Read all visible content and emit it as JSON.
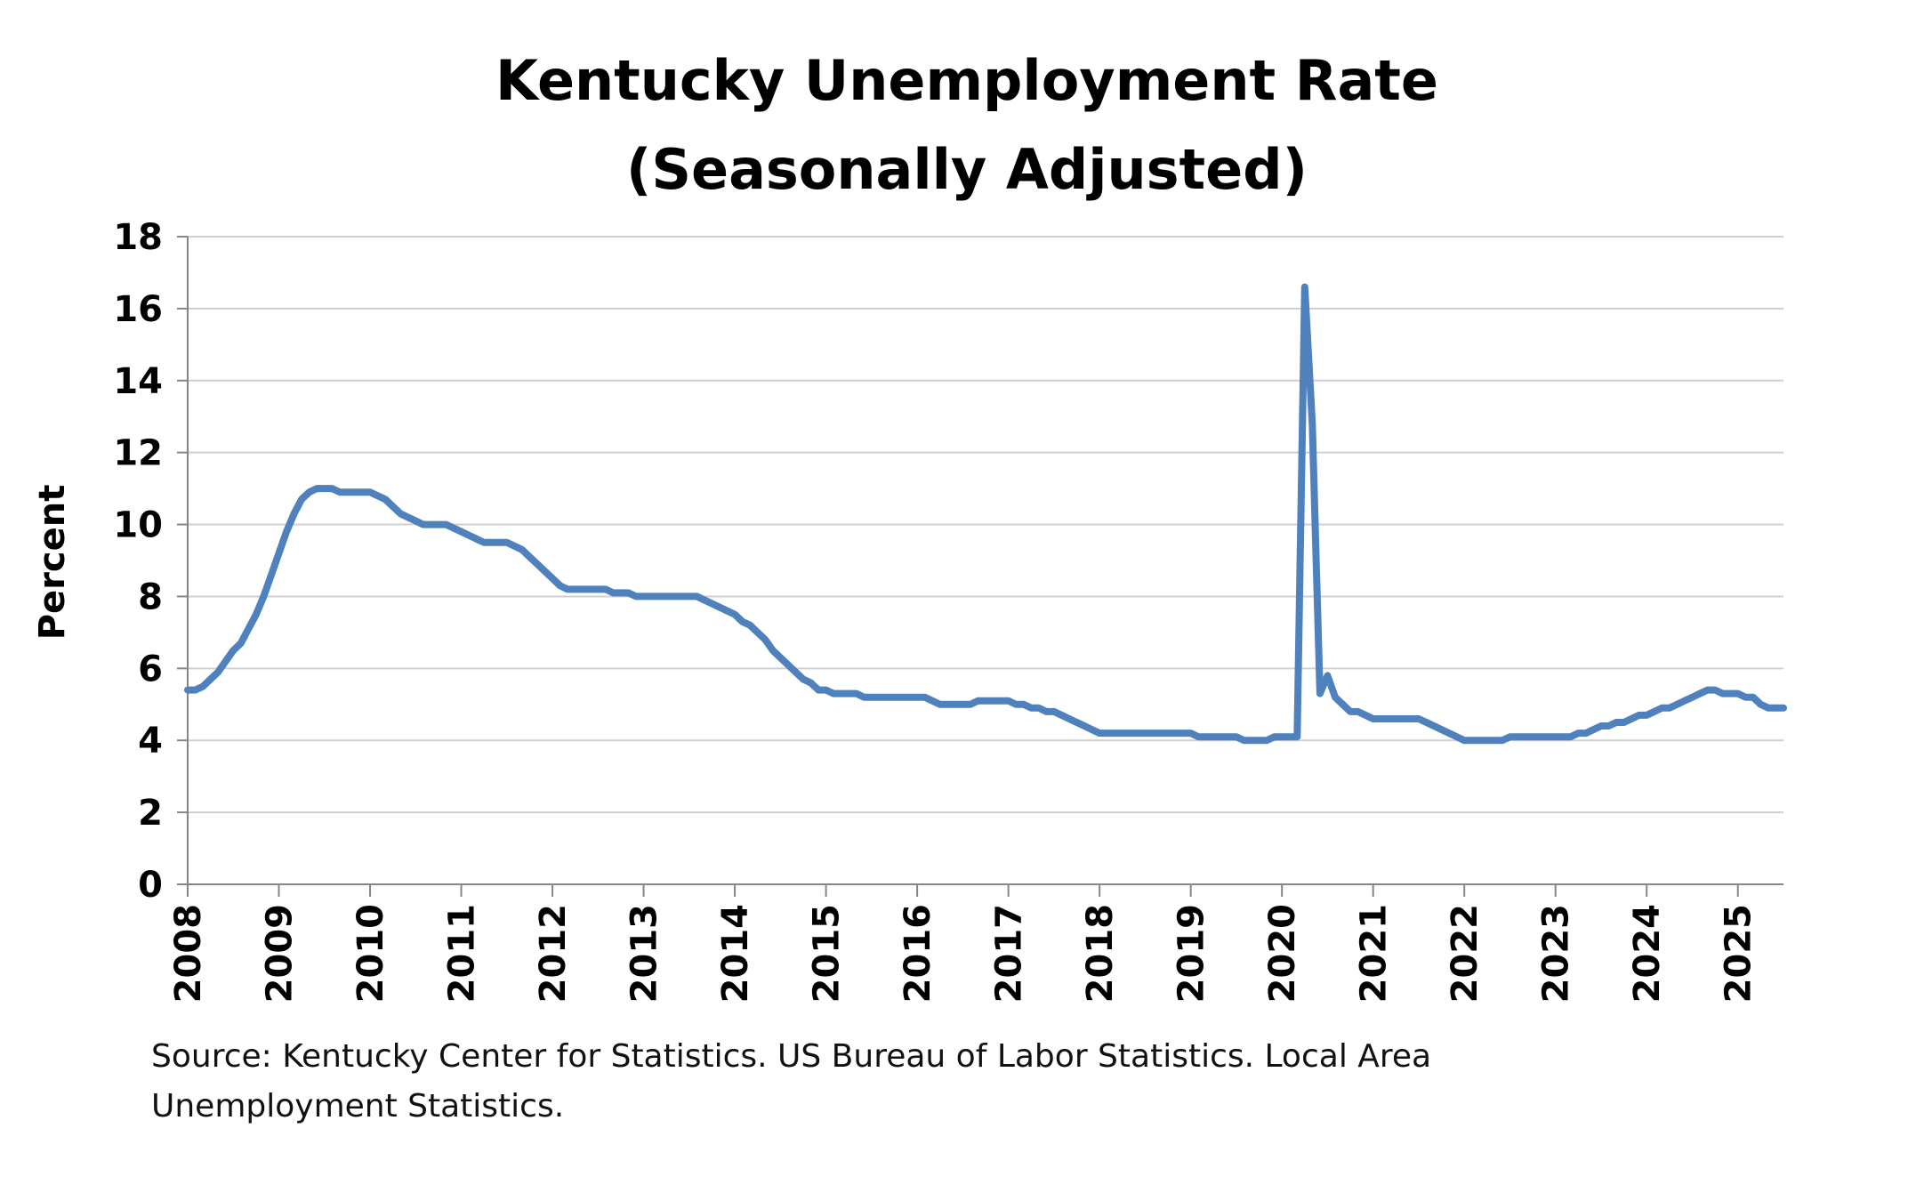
{
  "source_note": "Source: Kentucky Center for Statistics. US Bureau of Labor Statistics. Local Area Unemployment Statistics.",
  "chart_data": {
    "type": "line",
    "title_lines": [
      "Kentucky Unemployment Rate",
      "(Seasonally Adjusted)"
    ],
    "xlabel": "",
    "ylabel": "Percent",
    "ylim": [
      0,
      18
    ],
    "y_ticks": [
      0,
      2,
      4,
      6,
      8,
      10,
      12,
      14,
      16,
      18
    ],
    "xlim": [
      "2008-01",
      "2025-07"
    ],
    "x_ticks": [
      "2008",
      "2009",
      "2010",
      "2011",
      "2012",
      "2013",
      "2014",
      "2015",
      "2016",
      "2017",
      "2018",
      "2019",
      "2020",
      "2021",
      "2022",
      "2023",
      "2024",
      "2025"
    ],
    "grid": "horizontal",
    "legend": "none",
    "line_color": "#4F81BD",
    "series": [
      {
        "points": [
          [
            "2008-01",
            5.4
          ],
          [
            "2008-02",
            5.4
          ],
          [
            "2008-03",
            5.5
          ],
          [
            "2008-04",
            5.7
          ],
          [
            "2008-05",
            5.9
          ],
          [
            "2008-06",
            6.2
          ],
          [
            "2008-07",
            6.5
          ],
          [
            "2008-08",
            6.7
          ],
          [
            "2008-09",
            7.1
          ],
          [
            "2008-10",
            7.5
          ],
          [
            "2008-11",
            8.0
          ],
          [
            "2008-12",
            8.6
          ],
          [
            "2009-01",
            9.2
          ],
          [
            "2009-02",
            9.8
          ],
          [
            "2009-03",
            10.3
          ],
          [
            "2009-04",
            10.7
          ],
          [
            "2009-05",
            10.9
          ],
          [
            "2009-06",
            11.0
          ],
          [
            "2009-07",
            11.0
          ],
          [
            "2009-08",
            11.0
          ],
          [
            "2009-09",
            10.9
          ],
          [
            "2009-10",
            10.9
          ],
          [
            "2009-11",
            10.9
          ],
          [
            "2009-12",
            10.9
          ],
          [
            "2010-01",
            10.9
          ],
          [
            "2010-02",
            10.8
          ],
          [
            "2010-03",
            10.7
          ],
          [
            "2010-04",
            10.5
          ],
          [
            "2010-05",
            10.3
          ],
          [
            "2010-06",
            10.2
          ],
          [
            "2010-07",
            10.1
          ],
          [
            "2010-08",
            10.0
          ],
          [
            "2010-09",
            10.0
          ],
          [
            "2010-10",
            10.0
          ],
          [
            "2010-11",
            10.0
          ],
          [
            "2010-12",
            9.9
          ],
          [
            "2011-01",
            9.8
          ],
          [
            "2011-02",
            9.7
          ],
          [
            "2011-03",
            9.6
          ],
          [
            "2011-04",
            9.5
          ],
          [
            "2011-05",
            9.5
          ],
          [
            "2011-06",
            9.5
          ],
          [
            "2011-07",
            9.5
          ],
          [
            "2011-08",
            9.4
          ],
          [
            "2011-09",
            9.3
          ],
          [
            "2011-10",
            9.1
          ],
          [
            "2011-11",
            8.9
          ],
          [
            "2011-12",
            8.7
          ],
          [
            "2012-01",
            8.5
          ],
          [
            "2012-02",
            8.3
          ],
          [
            "2012-03",
            8.2
          ],
          [
            "2012-04",
            8.2
          ],
          [
            "2012-05",
            8.2
          ],
          [
            "2012-06",
            8.2
          ],
          [
            "2012-07",
            8.2
          ],
          [
            "2012-08",
            8.2
          ],
          [
            "2012-09",
            8.1
          ],
          [
            "2012-10",
            8.1
          ],
          [
            "2012-11",
            8.1
          ],
          [
            "2012-12",
            8.0
          ],
          [
            "2013-01",
            8.0
          ],
          [
            "2013-02",
            8.0
          ],
          [
            "2013-03",
            8.0
          ],
          [
            "2013-04",
            8.0
          ],
          [
            "2013-05",
            8.0
          ],
          [
            "2013-06",
            8.0
          ],
          [
            "2013-07",
            8.0
          ],
          [
            "2013-08",
            8.0
          ],
          [
            "2013-09",
            7.9
          ],
          [
            "2013-10",
            7.8
          ],
          [
            "2013-11",
            7.7
          ],
          [
            "2013-12",
            7.6
          ],
          [
            "2014-01",
            7.5
          ],
          [
            "2014-02",
            7.3
          ],
          [
            "2014-03",
            7.2
          ],
          [
            "2014-04",
            7.0
          ],
          [
            "2014-05",
            6.8
          ],
          [
            "2014-06",
            6.5
          ],
          [
            "2014-07",
            6.3
          ],
          [
            "2014-08",
            6.1
          ],
          [
            "2014-09",
            5.9
          ],
          [
            "2014-10",
            5.7
          ],
          [
            "2014-11",
            5.6
          ],
          [
            "2014-12",
            5.4
          ],
          [
            "2015-01",
            5.4
          ],
          [
            "2015-02",
            5.3
          ],
          [
            "2015-03",
            5.3
          ],
          [
            "2015-04",
            5.3
          ],
          [
            "2015-05",
            5.3
          ],
          [
            "2015-06",
            5.2
          ],
          [
            "2015-07",
            5.2
          ],
          [
            "2015-08",
            5.2
          ],
          [
            "2015-09",
            5.2
          ],
          [
            "2015-10",
            5.2
          ],
          [
            "2015-11",
            5.2
          ],
          [
            "2015-12",
            5.2
          ],
          [
            "2016-01",
            5.2
          ],
          [
            "2016-02",
            5.2
          ],
          [
            "2016-03",
            5.1
          ],
          [
            "2016-04",
            5.0
          ],
          [
            "2016-05",
            5.0
          ],
          [
            "2016-06",
            5.0
          ],
          [
            "2016-07",
            5.0
          ],
          [
            "2016-08",
            5.0
          ],
          [
            "2016-09",
            5.1
          ],
          [
            "2016-10",
            5.1
          ],
          [
            "2016-11",
            5.1
          ],
          [
            "2016-12",
            5.1
          ],
          [
            "2017-01",
            5.1
          ],
          [
            "2017-02",
            5.0
          ],
          [
            "2017-03",
            5.0
          ],
          [
            "2017-04",
            4.9
          ],
          [
            "2017-05",
            4.9
          ],
          [
            "2017-06",
            4.8
          ],
          [
            "2017-07",
            4.8
          ],
          [
            "2017-08",
            4.7
          ],
          [
            "2017-09",
            4.6
          ],
          [
            "2017-10",
            4.5
          ],
          [
            "2017-11",
            4.4
          ],
          [
            "2017-12",
            4.3
          ],
          [
            "2018-01",
            4.2
          ],
          [
            "2018-02",
            4.2
          ],
          [
            "2018-03",
            4.2
          ],
          [
            "2018-04",
            4.2
          ],
          [
            "2018-05",
            4.2
          ],
          [
            "2018-06",
            4.2
          ],
          [
            "2018-07",
            4.2
          ],
          [
            "2018-08",
            4.2
          ],
          [
            "2018-09",
            4.2
          ],
          [
            "2018-10",
            4.2
          ],
          [
            "2018-11",
            4.2
          ],
          [
            "2018-12",
            4.2
          ],
          [
            "2019-01",
            4.2
          ],
          [
            "2019-02",
            4.1
          ],
          [
            "2019-03",
            4.1
          ],
          [
            "2019-04",
            4.1
          ],
          [
            "2019-05",
            4.1
          ],
          [
            "2019-06",
            4.1
          ],
          [
            "2019-07",
            4.1
          ],
          [
            "2019-08",
            4.0
          ],
          [
            "2019-09",
            4.0
          ],
          [
            "2019-10",
            4.0
          ],
          [
            "2019-11",
            4.0
          ],
          [
            "2019-12",
            4.1
          ],
          [
            "2020-01",
            4.1
          ],
          [
            "2020-02",
            4.1
          ],
          [
            "2020-03",
            4.1
          ],
          [
            "2020-04",
            16.6
          ],
          [
            "2020-05",
            12.8
          ],
          [
            "2020-06",
            5.3
          ],
          [
            "2020-07",
            5.8
          ],
          [
            "2020-08",
            5.2
          ],
          [
            "2020-09",
            5.0
          ],
          [
            "2020-10",
            4.8
          ],
          [
            "2020-11",
            4.8
          ],
          [
            "2020-12",
            4.7
          ],
          [
            "2021-01",
            4.6
          ],
          [
            "2021-02",
            4.6
          ],
          [
            "2021-03",
            4.6
          ],
          [
            "2021-04",
            4.6
          ],
          [
            "2021-05",
            4.6
          ],
          [
            "2021-06",
            4.6
          ],
          [
            "2021-07",
            4.6
          ],
          [
            "2021-08",
            4.5
          ],
          [
            "2021-09",
            4.4
          ],
          [
            "2021-10",
            4.3
          ],
          [
            "2021-11",
            4.2
          ],
          [
            "2021-12",
            4.1
          ],
          [
            "2022-01",
            4.0
          ],
          [
            "2022-02",
            4.0
          ],
          [
            "2022-03",
            4.0
          ],
          [
            "2022-04",
            4.0
          ],
          [
            "2022-05",
            4.0
          ],
          [
            "2022-06",
            4.0
          ],
          [
            "2022-07",
            4.1
          ],
          [
            "2022-08",
            4.1
          ],
          [
            "2022-09",
            4.1
          ],
          [
            "2022-10",
            4.1
          ],
          [
            "2022-11",
            4.1
          ],
          [
            "2022-12",
            4.1
          ],
          [
            "2023-01",
            4.1
          ],
          [
            "2023-02",
            4.1
          ],
          [
            "2023-03",
            4.1
          ],
          [
            "2023-04",
            4.2
          ],
          [
            "2023-05",
            4.2
          ],
          [
            "2023-06",
            4.3
          ],
          [
            "2023-07",
            4.4
          ],
          [
            "2023-08",
            4.4
          ],
          [
            "2023-09",
            4.5
          ],
          [
            "2023-10",
            4.5
          ],
          [
            "2023-11",
            4.6
          ],
          [
            "2023-12",
            4.7
          ],
          [
            "2024-01",
            4.7
          ],
          [
            "2024-02",
            4.8
          ],
          [
            "2024-03",
            4.9
          ],
          [
            "2024-04",
            4.9
          ],
          [
            "2024-05",
            5.0
          ],
          [
            "2024-06",
            5.1
          ],
          [
            "2024-07",
            5.2
          ],
          [
            "2024-08",
            5.3
          ],
          [
            "2024-09",
            5.4
          ],
          [
            "2024-10",
            5.4
          ],
          [
            "2024-11",
            5.3
          ],
          [
            "2024-12",
            5.3
          ],
          [
            "2025-01",
            5.3
          ],
          [
            "2025-02",
            5.2
          ],
          [
            "2025-03",
            5.2
          ],
          [
            "2025-04",
            5.0
          ],
          [
            "2025-05",
            4.9
          ],
          [
            "2025-06",
            4.9
          ],
          [
            "2025-07",
            4.9
          ]
        ]
      }
    ]
  }
}
